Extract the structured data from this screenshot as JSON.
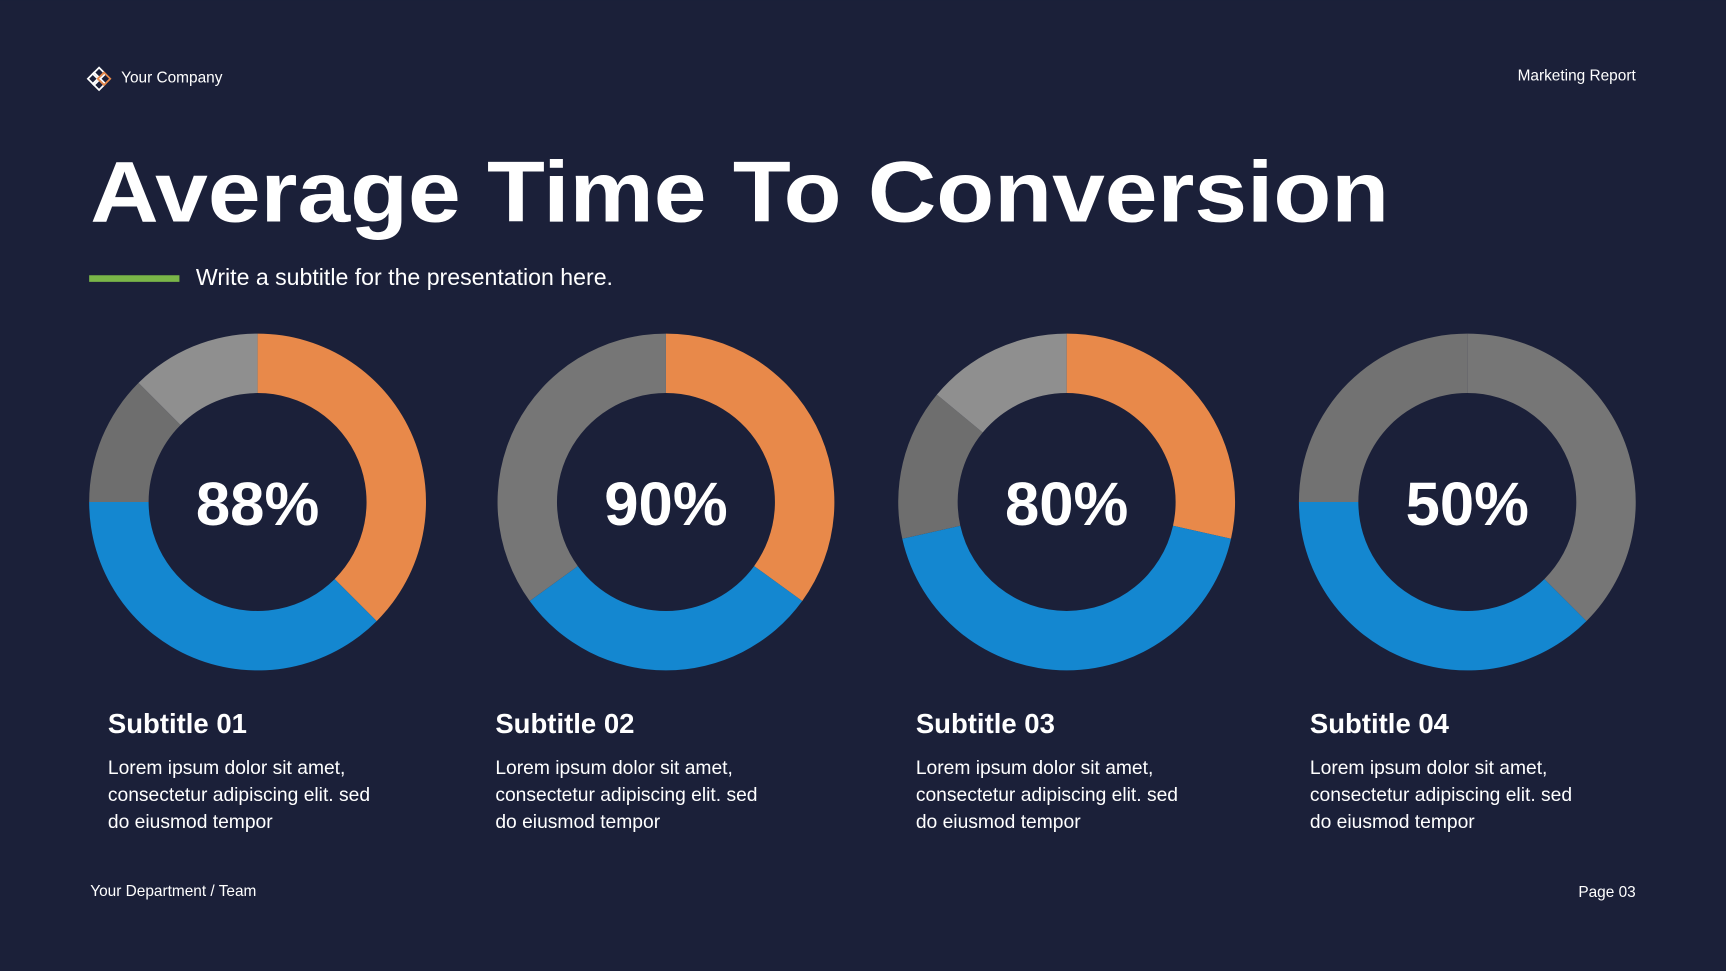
{
  "header": {
    "company": "Your Company",
    "report": "Marketing Report"
  },
  "title": "Average Time To Conversion",
  "subtitle": "Write a subtitle for the presentation here.",
  "chart_data": [
    {
      "type": "pie",
      "center_label": "88%",
      "values": [
        37.5,
        37.5,
        12.5,
        12.5
      ],
      "colors": [
        "#e8894a",
        "#1487d0",
        "#6e6e6e",
        "#8f8f8f"
      ],
      "title": "Subtitle 01",
      "description": [
        "Lorem ipsum dolor sit amet,",
        "consectetur adipiscing elit. sed",
        "do eiusmod tempor"
      ]
    },
    {
      "type": "pie",
      "center_label": "90%",
      "values": [
        35,
        30,
        35
      ],
      "colors": [
        "#e8894a",
        "#1487d0",
        "#767676"
      ],
      "title": "Subtitle 02",
      "description": [
        "Lorem ipsum dolor sit amet,",
        "consectetur adipiscing elit. sed",
        "do eiusmod tempor"
      ]
    },
    {
      "type": "pie",
      "center_label": "80%",
      "values": [
        28.5,
        43,
        14.5,
        14
      ],
      "colors": [
        "#e8894a",
        "#1487d0",
        "#6e6e6e",
        "#8f8f8f"
      ],
      "title": "Subtitle 03",
      "description": [
        "Lorem ipsum dolor sit amet,",
        "consectetur adipiscing elit. sed",
        "do eiusmod tempor"
      ]
    },
    {
      "type": "pie",
      "center_label": "50%",
      "values": [
        37.5,
        37.5,
        25
      ],
      "colors": [
        "#767676",
        "#1487d0",
        "#727272"
      ],
      "title": "Subtitle 04",
      "description": [
        "Lorem ipsum dolor sit amet,",
        "consectetur adipiscing elit. sed",
        "do eiusmod tempor"
      ]
    }
  ],
  "footer": {
    "team": "Your Department / Team",
    "page": "Page 03"
  }
}
